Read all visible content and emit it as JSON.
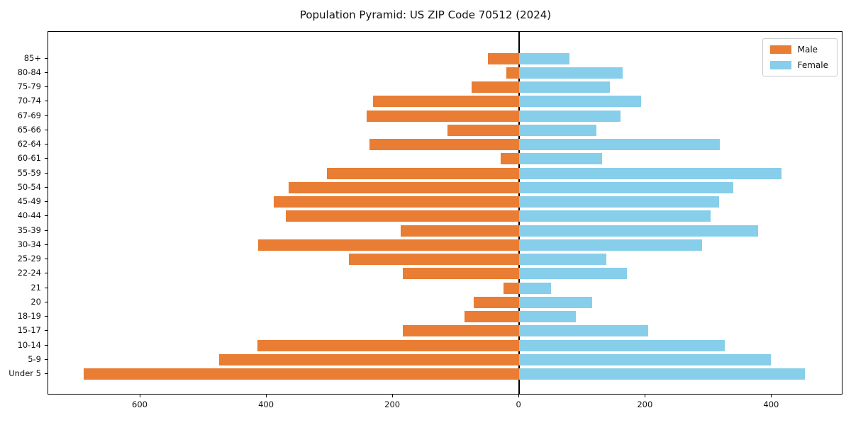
{
  "title": "Population Pyramid: US ZIP Code 70512 (2024)",
  "legend": {
    "male": "Male",
    "female": "Female"
  },
  "colors": {
    "male": "#e87d33",
    "female": "#87ceeb",
    "axis": "#000000"
  },
  "chart_data": {
    "type": "bar",
    "subtype": "population-pyramid",
    "title": "Population Pyramid: US ZIP Code 70512 (2024)",
    "orientation": "horizontal",
    "categories_top_to_bottom": [
      "85+",
      "80-84",
      "75-79",
      "70-74",
      "67-69",
      "65-66",
      "62-64",
      "60-61",
      "55-59",
      "50-54",
      "45-49",
      "40-44",
      "35-39",
      "30-34",
      "25-29",
      "22-24",
      "21",
      "20",
      "18-19",
      "15-17",
      "10-14",
      "5-9",
      "Under 5"
    ],
    "series": [
      {
        "name": "Male",
        "side": "left",
        "color": "#e87d33",
        "values": [
          50,
          20,
          75,
          232,
          242,
          114,
          237,
          30,
          305,
          365,
          389,
          370,
          188,
          413,
          270,
          185,
          25,
          72,
          87,
          185,
          415,
          475,
          690
        ]
      },
      {
        "name": "Female",
        "side": "right",
        "color": "#87ceeb",
        "values": [
          80,
          164,
          144,
          193,
          160,
          122,
          318,
          131,
          415,
          339,
          317,
          303,
          378,
          290,
          138,
          170,
          50,
          115,
          90,
          204,
          326,
          399,
          452
        ]
      }
    ],
    "x_axis": {
      "tick_values": [
        -600,
        -400,
        -200,
        0,
        200,
        400
      ],
      "tick_labels": [
        "600",
        "400",
        "200",
        "0",
        "200",
        "400"
      ],
      "xlim": [
        -746,
        513
      ]
    },
    "grid": false,
    "zero_line": true,
    "legend_position": "upper right"
  }
}
